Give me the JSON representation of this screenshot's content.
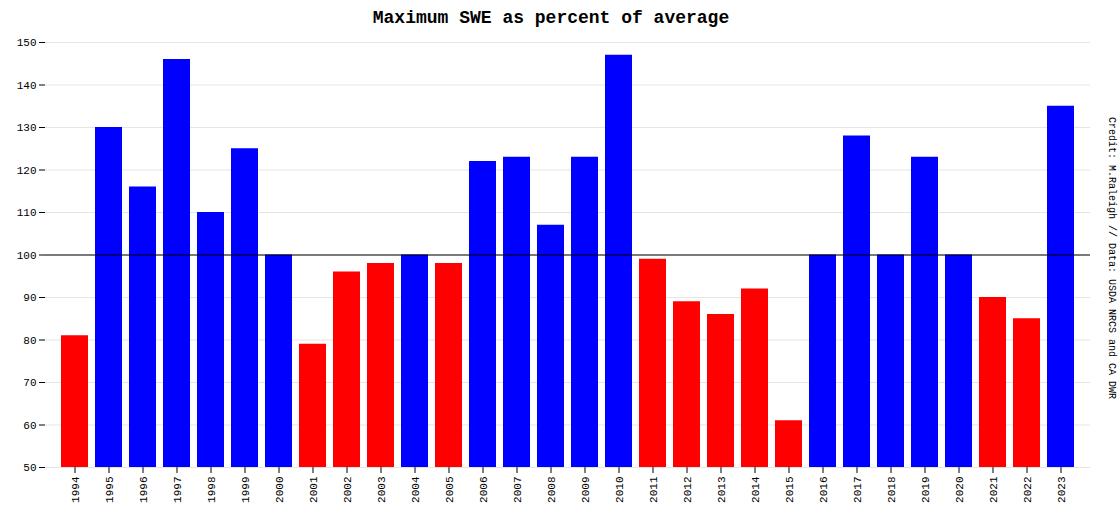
{
  "chart_data": {
    "type": "bar",
    "title": "Maximum SWE as percent of average",
    "annotation": "Credit: M.Raleigh // Data: USDA NRCS and CA DWR",
    "categories": [
      "1994",
      "1995",
      "1996",
      "1997",
      "1998",
      "1999",
      "2000",
      "2001",
      "2002",
      "2003",
      "2004",
      "2005",
      "2006",
      "2007",
      "2008",
      "2009",
      "2010",
      "2011",
      "2012",
      "2013",
      "2014",
      "2015",
      "2016",
      "2017",
      "2018",
      "2019",
      "2020",
      "2021",
      "2022",
      "2023"
    ],
    "values": [
      81,
      130,
      116,
      146,
      110,
      125,
      100,
      79,
      96,
      98,
      100,
      98,
      122,
      123,
      107,
      123,
      147,
      99,
      89,
      86,
      92,
      61,
      100,
      128,
      100,
      123,
      100,
      90,
      85,
      135
    ],
    "colors": [
      "#ff0000",
      "#0000ff",
      "#0000ff",
      "#0000ff",
      "#0000ff",
      "#0000ff",
      "#0000ff",
      "#ff0000",
      "#ff0000",
      "#ff0000",
      "#0000ff",
      "#ff0000",
      "#0000ff",
      "#0000ff",
      "#0000ff",
      "#0000ff",
      "#0000ff",
      "#ff0000",
      "#ff0000",
      "#ff0000",
      "#ff0000",
      "#ff0000",
      "#0000ff",
      "#0000ff",
      "#0000ff",
      "#0000ff",
      "#0000ff",
      "#ff0000",
      "#ff0000",
      "#0000ff"
    ],
    "baseline": 100,
    "ylim": [
      50,
      150
    ],
    "yticks": [
      50,
      60,
      70,
      80,
      90,
      100,
      110,
      120,
      130,
      140,
      150
    ],
    "grid": true
  }
}
